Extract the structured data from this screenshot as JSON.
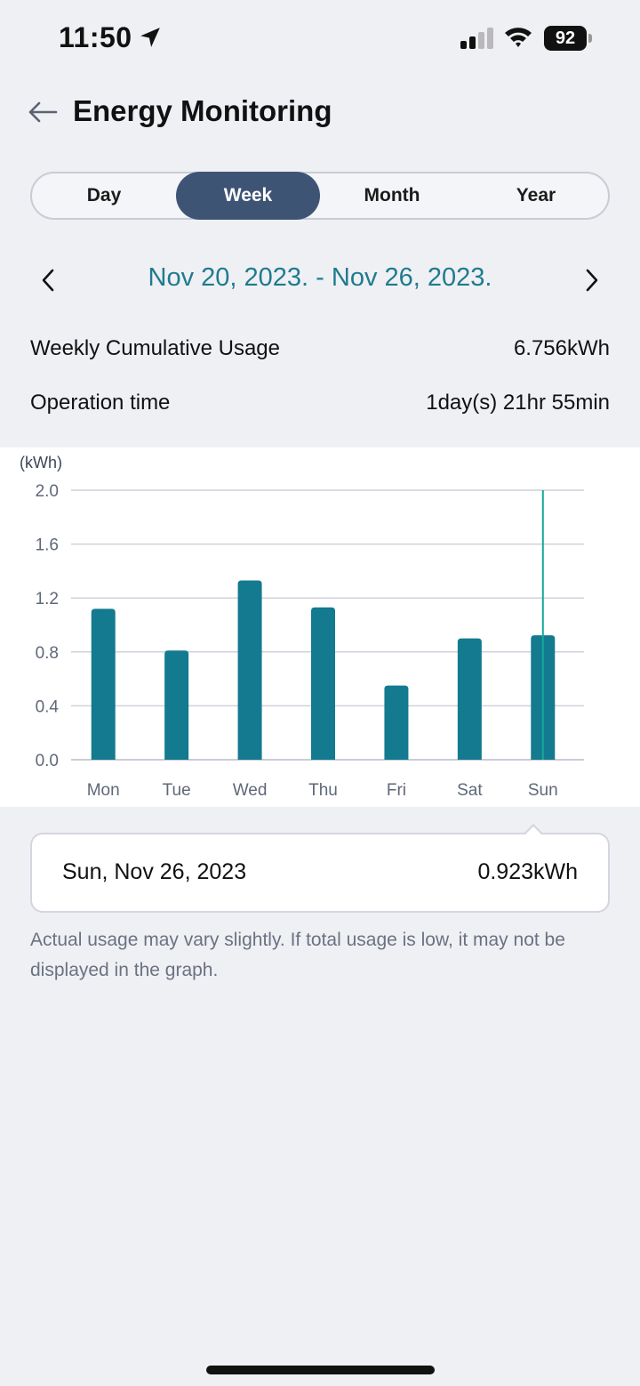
{
  "status_bar": {
    "time": "11:50",
    "battery": "92"
  },
  "header": {
    "title": "Energy Monitoring"
  },
  "tabs": [
    {
      "label": "Day",
      "active": false
    },
    {
      "label": "Week",
      "active": true
    },
    {
      "label": "Month",
      "active": false
    },
    {
      "label": "Year",
      "active": false
    }
  ],
  "date_range": "Nov 20, 2023. - Nov 26, 2023.",
  "summary": {
    "usage_label": "Weekly Cumulative Usage",
    "usage_value": "6.756kWh",
    "time_label": "Operation time",
    "time_value": "1day(s) 21hr 55min"
  },
  "chart_data": {
    "type": "bar",
    "unit_label": "(kWh)",
    "categories": [
      "Mon",
      "Tue",
      "Wed",
      "Thu",
      "Fri",
      "Sat",
      "Sun"
    ],
    "values": [
      1.12,
      0.81,
      1.33,
      1.13,
      0.55,
      0.9,
      0.923
    ],
    "ylim": [
      0,
      2.0
    ],
    "yticks": [
      "0.0",
      "0.4",
      "0.8",
      "1.2",
      "1.6",
      "2.0"
    ],
    "selected_index": 6,
    "bar_color": "#137a8f",
    "selection_line_color": "#17a89b",
    "grid": true
  },
  "tooltip": {
    "date": "Sun, Nov 26, 2023",
    "value": "0.923kWh"
  },
  "disclaimer": "Actual usage may vary slightly. If total usage is low, it may not be displayed in the graph.",
  "colors": {
    "accent": "#1f7b8e",
    "active_tab": "#3e5475",
    "background": "#eff0f4"
  }
}
